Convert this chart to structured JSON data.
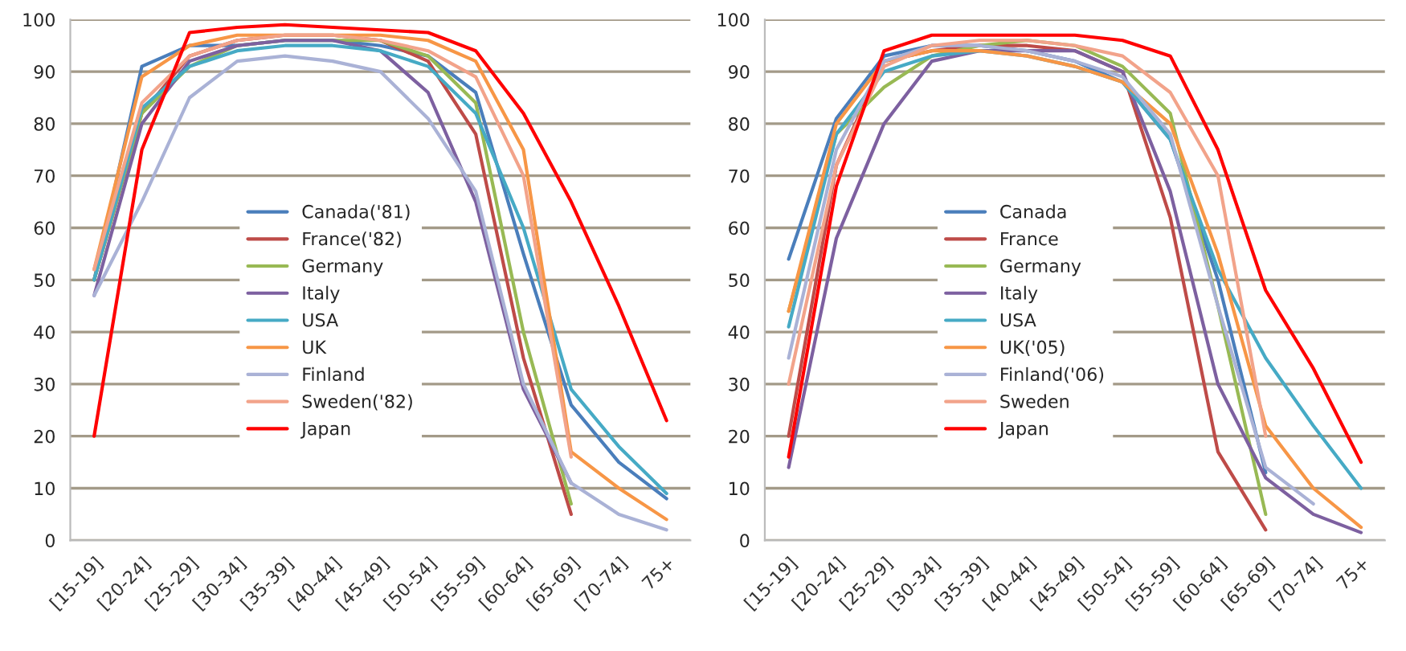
{
  "chart_data": [
    {
      "type": "line",
      "categories": [
        "[15-19]",
        "[20-24]",
        "[25-29]",
        "[30-34]",
        "[35-39]",
        "[40-44]",
        "[45-49]",
        "[50-54]",
        "[55-59]",
        "[60-64]",
        "[65-69]",
        "[70-74]",
        "75+"
      ],
      "ylim": [
        0,
        100
      ],
      "yticks": [
        0,
        10,
        20,
        30,
        40,
        50,
        60,
        70,
        80,
        90,
        100
      ],
      "grid": "y",
      "legend": "center",
      "marker": "none",
      "line_style": "solid",
      "series": [
        {
          "name": "Canada('81)",
          "color": "#4a7ebb",
          "values": [
            50,
            91,
            95,
            95,
            96,
            96,
            95,
            93,
            86,
            55,
            26,
            15,
            8
          ]
        },
        {
          "name": "France('82)",
          "color": "#be4b48",
          "values": [
            50,
            82,
            93,
            96,
            97,
            97,
            96,
            92,
            78,
            35,
            5,
            null,
            null
          ]
        },
        {
          "name": "Germany",
          "color": "#98b954",
          "values": [
            50,
            82,
            91,
            95,
            96,
            96,
            96,
            93,
            84,
            40,
            7,
            null,
            null
          ]
        },
        {
          "name": "Italy",
          "color": "#7d60a0",
          "values": [
            47,
            80,
            92,
            95,
            96,
            96,
            94,
            86,
            65,
            29,
            11,
            null,
            null
          ]
        },
        {
          "name": "USA",
          "color": "#46aac5",
          "values": [
            50,
            83,
            91,
            94,
            95,
            95,
            94,
            91,
            82,
            60,
            29,
            18,
            9
          ]
        },
        {
          "name": "UK",
          "color": "#f79646",
          "values": [
            52,
            89,
            95,
            97,
            97,
            97,
            97,
            96,
            92,
            75,
            17,
            10,
            4
          ]
        },
        {
          "name": "Finland",
          "color": "#aab2d6",
          "values": [
            47,
            65,
            85,
            92,
            93,
            92,
            90,
            81,
            67,
            30,
            11,
            5,
            2
          ]
        },
        {
          "name": "Sweden('82)",
          "color": "#f2a38a",
          "values": [
            52,
            84,
            93,
            96,
            97,
            97,
            96,
            94,
            89,
            70,
            16,
            null,
            null
          ]
        },
        {
          "name": "Japan",
          "color": "#ff0000",
          "values": [
            20,
            75,
            97.5,
            98.5,
            99,
            98.5,
            98,
            97.5,
            94,
            82,
            65,
            45,
            23
          ]
        }
      ]
    },
    {
      "type": "line",
      "categories": [
        "[15-19]",
        "[20-24]",
        "[25-29]",
        "[30-34]",
        "[35-39]",
        "[40-44]",
        "[45-49]",
        "[50-54]",
        "[55-59]",
        "[60-64]",
        "[65-69]",
        "[70-74]",
        "75+"
      ],
      "ylim": [
        0,
        100
      ],
      "yticks": [
        0,
        10,
        20,
        30,
        40,
        50,
        60,
        70,
        80,
        90,
        100
      ],
      "grid": "y",
      "legend": "center",
      "marker": "none",
      "line_style": "solid",
      "series": [
        {
          "name": "Canada",
          "color": "#4a7ebb",
          "values": [
            54,
            81,
            93,
            95,
            95,
            94,
            92,
            88,
            77,
            50,
            13,
            null,
            null
          ]
        },
        {
          "name": "France",
          "color": "#be4b48",
          "values": [
            20,
            72,
            92,
            94,
            95,
            95,
            94,
            90,
            62,
            17,
            2,
            null,
            null
          ]
        },
        {
          "name": "Germany",
          "color": "#98b954",
          "values": [
            44,
            78,
            87,
            93,
            95,
            96,
            95,
            91,
            82,
            45,
            5,
            null,
            null
          ]
        },
        {
          "name": "Italy",
          "color": "#7d60a0",
          "values": [
            14,
            58,
            80,
            92,
            94,
            94,
            94,
            90,
            67,
            30,
            12,
            5,
            1.5
          ]
        },
        {
          "name": "USA",
          "color": "#46aac5",
          "values": [
            41,
            78,
            90,
            93,
            94,
            93,
            91,
            88,
            77,
            52,
            35,
            22,
            10
          ]
        },
        {
          "name": "UK('05)",
          "color": "#f79646",
          "values": [
            44,
            80,
            92,
            94,
            94,
            93,
            91,
            88,
            80,
            55,
            22,
            10,
            2.5
          ]
        },
        {
          "name": "Finland('06)",
          "color": "#aab2d6",
          "values": [
            35,
            75,
            92,
            95,
            95,
            94,
            92,
            89,
            78,
            45,
            14,
            7,
            null
          ]
        },
        {
          "name": "Sweden",
          "color": "#f2a38a",
          "values": [
            30,
            72,
            91,
            95,
            96,
            96,
            95,
            93,
            86,
            70,
            20,
            null,
            null
          ]
        },
        {
          "name": "Japan",
          "color": "#ff0000",
          "values": [
            16,
            68,
            94,
            97,
            97,
            97,
            97,
            96,
            93,
            75,
            48,
            33,
            15
          ]
        }
      ]
    }
  ]
}
